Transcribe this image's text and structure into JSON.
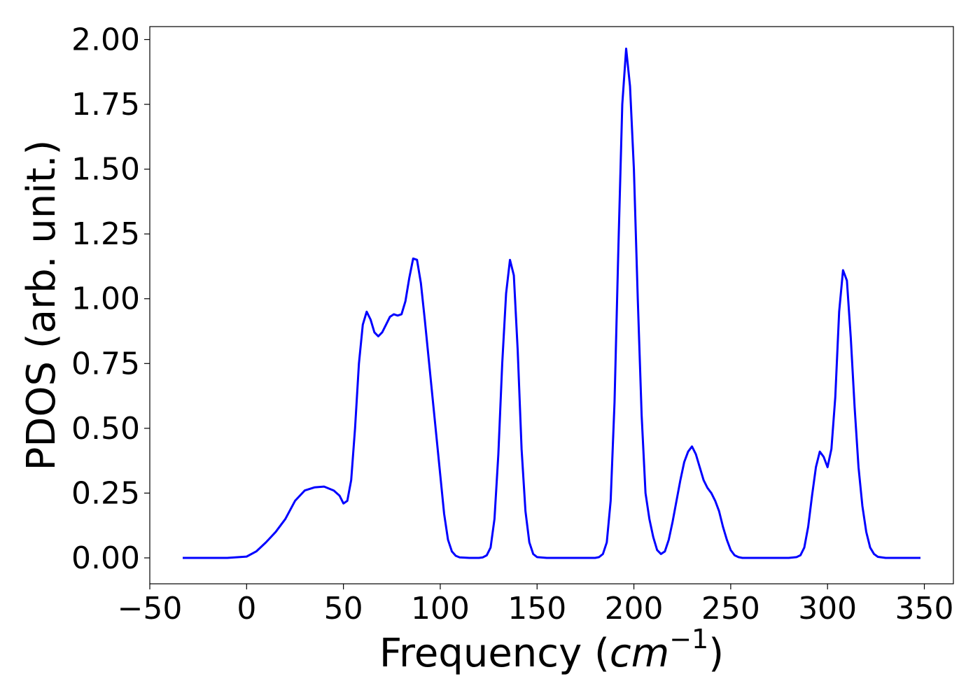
{
  "chart_data": {
    "type": "line",
    "xlabel_text": "Frequency (",
    "xlabel_math": "cm",
    "xlabel_exp": "−1",
    "xlabel_close": ")",
    "ylabel": "PDOS (arb. unit.)",
    "xlim": [
      -50,
      365
    ],
    "ylim": [
      -0.1,
      2.05
    ],
    "xticks": [
      -50,
      0,
      50,
      100,
      150,
      200,
      250,
      300,
      350
    ],
    "xtick_labels": [
      "−50",
      "0",
      "50",
      "100",
      "150",
      "200",
      "250",
      "300",
      "350"
    ],
    "yticks": [
      0,
      0.25,
      0.5,
      0.75,
      1.0,
      1.25,
      1.5,
      1.75,
      2.0
    ],
    "ytick_labels": [
      "0.00",
      "0.25",
      "0.50",
      "0.75",
      "1.00",
      "1.25",
      "1.50",
      "1.75",
      "2.00"
    ],
    "grid": false,
    "line_color": "#0000ff",
    "series": [
      {
        "x": [
          -33,
          -20,
          -10,
          0,
          5,
          10,
          15,
          20,
          25,
          30,
          35,
          40,
          45,
          48,
          50,
          52,
          54,
          56,
          58,
          60,
          62,
          64,
          66,
          68,
          70,
          72,
          74,
          76,
          78,
          80,
          82,
          84,
          86,
          88,
          90,
          92,
          94,
          96,
          98,
          100,
          102,
          104,
          106,
          108,
          110,
          115,
          120,
          122,
          124,
          126,
          128,
          130,
          132,
          134,
          136,
          138,
          140,
          142,
          144,
          146,
          148,
          150,
          155,
          160,
          170,
          180,
          182,
          184,
          186,
          188,
          190,
          192,
          194,
          196,
          198,
          200,
          202,
          204,
          206,
          208,
          210,
          212,
          214,
          216,
          218,
          220,
          222,
          224,
          226,
          228,
          230,
          232,
          234,
          236,
          238,
          240,
          242,
          244,
          246,
          248,
          250,
          252,
          254,
          256,
          260,
          270,
          280,
          284,
          286,
          288,
          290,
          292,
          294,
          296,
          298,
          300,
          302,
          304,
          306,
          308,
          310,
          312,
          314,
          316,
          318,
          320,
          322,
          324,
          326,
          330,
          340,
          348
        ],
        "y": [
          0,
          0,
          0,
          0.005,
          0.025,
          0.06,
          0.1,
          0.15,
          0.22,
          0.26,
          0.272,
          0.275,
          0.26,
          0.24,
          0.21,
          0.22,
          0.3,
          0.5,
          0.75,
          0.9,
          0.95,
          0.92,
          0.87,
          0.855,
          0.87,
          0.9,
          0.93,
          0.94,
          0.935,
          0.94,
          0.99,
          1.08,
          1.155,
          1.15,
          1.06,
          0.92,
          0.77,
          0.62,
          0.47,
          0.32,
          0.17,
          0.07,
          0.025,
          0.008,
          0.002,
          0,
          0,
          0.002,
          0.01,
          0.04,
          0.15,
          0.4,
          0.75,
          1.02,
          1.15,
          1.09,
          0.8,
          0.42,
          0.18,
          0.06,
          0.015,
          0.003,
          0,
          0,
          0,
          0,
          0.003,
          0.015,
          0.06,
          0.22,
          0.6,
          1.2,
          1.75,
          1.965,
          1.82,
          1.5,
          1.0,
          0.55,
          0.25,
          0.15,
          0.08,
          0.03,
          0.015,
          0.025,
          0.07,
          0.14,
          0.22,
          0.3,
          0.37,
          0.41,
          0.43,
          0.4,
          0.35,
          0.3,
          0.27,
          0.25,
          0.22,
          0.18,
          0.12,
          0.07,
          0.03,
          0.01,
          0.003,
          0,
          0,
          0,
          0,
          0.003,
          0.01,
          0.04,
          0.12,
          0.24,
          0.35,
          0.41,
          0.39,
          0.35,
          0.42,
          0.62,
          0.95,
          1.11,
          1.07,
          0.85,
          0.58,
          0.35,
          0.2,
          0.1,
          0.04,
          0.015,
          0.004,
          0,
          0,
          0
        ]
      }
    ]
  }
}
